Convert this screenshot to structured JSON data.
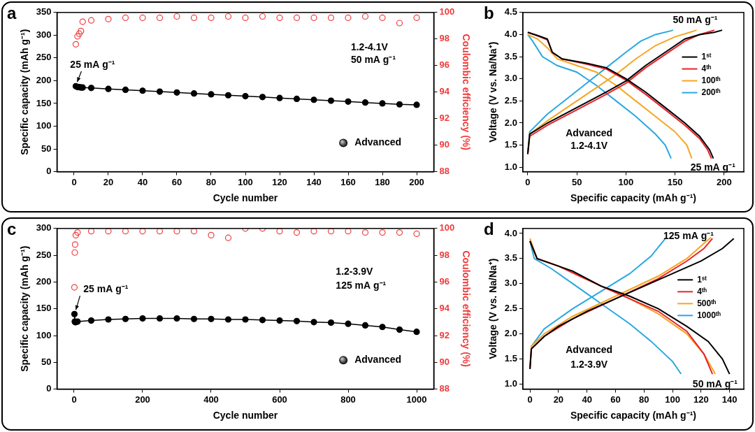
{
  "chart_data": [
    {
      "panel": "a",
      "type": "scatter",
      "x_label": "Cycle number",
      "y_label": "Specific capacity (mAh g⁻¹)",
      "y2_label": "Coulombic efficiency (%)",
      "xlim": [
        -10,
        210
      ],
      "xticks": [
        0,
        20,
        40,
        60,
        80,
        100,
        120,
        140,
        160,
        180,
        200
      ],
      "ylim": [
        0,
        350
      ],
      "yticks": [
        0,
        50,
        100,
        150,
        200,
        250,
        300,
        350
      ],
      "y2lim": [
        88,
        100
      ],
      "y2ticks": [
        88,
        90,
        92,
        94,
        96,
        98,
        100
      ],
      "grid": false,
      "legend": "lower right",
      "annotations": [
        "25 mA g⁻¹",
        "1.2-4.1V",
        "50 mA g⁻¹"
      ],
      "series": [
        {
          "name": "Advanced",
          "color": "#000000",
          "marker": "circle",
          "line_style": "solid",
          "x": [
            1,
            2,
            3,
            4,
            5,
            10,
            20,
            30,
            40,
            50,
            60,
            70,
            80,
            90,
            100,
            110,
            120,
            130,
            140,
            150,
            160,
            170,
            180,
            190,
            200
          ],
          "values": [
            188,
            186,
            186,
            185,
            185,
            184,
            182,
            180,
            178,
            176,
            174,
            172,
            170,
            168,
            166,
            164,
            162,
            160,
            158,
            156,
            154,
            152,
            150,
            148,
            147
          ]
        },
        {
          "color": "#f03c3c",
          "marker": "open_circle",
          "axis": "y2",
          "x": [
            1,
            2,
            3,
            4,
            5,
            10,
            20,
            30,
            40,
            50,
            60,
            70,
            80,
            90,
            100,
            110,
            120,
            130,
            140,
            150,
            160,
            170,
            180,
            190,
            200
          ],
          "values": [
            97.6,
            98.2,
            98.4,
            98.6,
            99.3,
            99.4,
            99.5,
            99.6,
            99.6,
            99.6,
            99.7,
            99.6,
            99.6,
            99.7,
            99.6,
            99.7,
            99.6,
            99.6,
            99.6,
            99.6,
            99.6,
            99.7,
            99.6,
            99.2,
            99.6
          ]
        }
      ]
    },
    {
      "panel": "b",
      "type": "line",
      "x_label": "Specific capacity (mAh g⁻¹)",
      "y_label": "Voltage (V vs. Na/Na⁺)",
      "xlim": [
        -5,
        220
      ],
      "xticks": [
        0,
        50,
        100,
        150,
        200
      ],
      "ylim": [
        0.9,
        4.5
      ],
      "yticks": [
        {
          "value": 1,
          "label": "1.0"
        },
        {
          "value": 1.5,
          "label": "1.5"
        },
        {
          "value": 2,
          "label": "2.0"
        },
        {
          "value": 2.5,
          "label": "2.5"
        },
        {
          "value": 3,
          "label": "3.0"
        },
        {
          "value": 3.5,
          "label": "3.5"
        },
        {
          "value": 4,
          "label": "4.0"
        },
        {
          "value": 4.5,
          "label": "4.5"
        }
      ],
      "grid": false,
      "legend": "right",
      "annotations": [
        "50 mA g⁻¹",
        "Advanced",
        "1.2-4.1V",
        "25 mA g⁻¹"
      ],
      "series": [
        {
          "name": "1ˢᵗ",
          "color": "#000000",
          "line_style": "solid",
          "segments": [
            {
              "x": [
                0,
                2,
                20,
                50,
                80,
                100,
                120,
                140,
                160,
                175,
                190,
                198
              ],
              "values": [
                1.3,
                1.75,
                2.0,
                2.35,
                2.7,
                2.95,
                3.3,
                3.6,
                3.9,
                4.0,
                4.05,
                4.1
              ]
            },
            {
              "x": [
                0,
                10,
                20,
                25,
                35,
                60,
                80,
                100,
                120,
                140,
                160,
                175,
                185,
                189
              ],
              "values": [
                4.05,
                3.98,
                3.9,
                3.6,
                3.45,
                3.35,
                3.25,
                3.0,
                2.7,
                2.35,
                2.0,
                1.7,
                1.4,
                1.2
              ]
            }
          ]
        },
        {
          "name": "4ᵗʰ",
          "color": "#e8232a",
          "line_style": "solid",
          "segments": [
            {
              "x": [
                0,
                2,
                20,
                50,
                80,
                100,
                120,
                140,
                160,
                175,
                190
              ],
              "values": [
                1.3,
                1.7,
                1.95,
                2.3,
                2.65,
                2.9,
                3.25,
                3.55,
                3.85,
                4.0,
                4.1
              ]
            },
            {
              "x": [
                0,
                10,
                20,
                25,
                35,
                60,
                80,
                100,
                120,
                140,
                160,
                175,
                183,
                187
              ],
              "values": [
                4.05,
                3.97,
                3.88,
                3.6,
                3.45,
                3.33,
                3.22,
                2.97,
                2.65,
                2.3,
                1.95,
                1.65,
                1.4,
                1.2
              ]
            }
          ]
        },
        {
          "name": "100ᵗʰ",
          "color": "#f5a623",
          "line_style": "solid",
          "segments": [
            {
              "x": [
                0,
                2,
                20,
                50,
                70,
                90,
                110,
                130,
                150,
                165,
                172
              ],
              "values": [
                1.3,
                1.75,
                2.05,
                2.5,
                2.8,
                3.1,
                3.45,
                3.75,
                3.95,
                4.05,
                4.1
              ]
            },
            {
              "x": [
                0,
                10,
                20,
                30,
                50,
                70,
                90,
                110,
                130,
                150,
                162,
                167
              ],
              "values": [
                4.0,
                3.9,
                3.7,
                3.45,
                3.3,
                3.15,
                2.85,
                2.5,
                2.15,
                1.8,
                1.5,
                1.2
              ]
            }
          ]
        },
        {
          "name": "200ᵗʰ",
          "color": "#29a8e0",
          "line_style": "solid",
          "segments": [
            {
              "x": [
                0,
                2,
                20,
                40,
                60,
                80,
                100,
                115,
                130,
                145,
                148
              ],
              "values": [
                1.3,
                1.8,
                2.2,
                2.55,
                2.9,
                3.25,
                3.6,
                3.85,
                4.0,
                4.08,
                4.1
              ]
            },
            {
              "x": [
                0,
                5,
                15,
                30,
                50,
                70,
                90,
                110,
                130,
                140,
                146
              ],
              "values": [
                4.0,
                3.85,
                3.5,
                3.3,
                3.15,
                2.85,
                2.5,
                2.15,
                1.75,
                1.5,
                1.2
              ]
            }
          ]
        }
      ]
    },
    {
      "panel": "c",
      "type": "scatter",
      "x_label": "Cycle number",
      "y_label": "Specific capacity (mAh g⁻¹)",
      "y2_label": "Coulombic efficiency (%)",
      "xlim": [
        -50,
        1050
      ],
      "xticks": [
        0,
        200,
        400,
        600,
        800,
        1000
      ],
      "ylim": [
        0,
        300
      ],
      "yticks": [
        0,
        50,
        100,
        150,
        200,
        250,
        300
      ],
      "y2lim": [
        88,
        100
      ],
      "y2ticks": [
        88,
        90,
        92,
        94,
        96,
        98,
        100
      ],
      "grid": false,
      "legend": "lower right",
      "annotations": [
        "25 mA g⁻¹",
        "1.2-3.9V",
        "125 mA g⁻¹"
      ],
      "series": [
        {
          "name": "Advanced",
          "color": "#000000",
          "marker": "circle",
          "line_style": "solid",
          "x": [
            1,
            2,
            3,
            5,
            10,
            50,
            100,
            150,
            200,
            250,
            300,
            350,
            400,
            450,
            500,
            550,
            600,
            650,
            700,
            750,
            800,
            850,
            900,
            950,
            1000
          ],
          "values": [
            140,
            126,
            125,
            125,
            126,
            128,
            130,
            131,
            132,
            132,
            132,
            131,
            131,
            130,
            130,
            129,
            128,
            127,
            125,
            124,
            122,
            119,
            116,
            111,
            107
          ]
        },
        {
          "color": "#f03c3c",
          "marker": "open_circle",
          "axis": "y2",
          "x": [
            1,
            2,
            3,
            5,
            10,
            50,
            100,
            150,
            200,
            250,
            300,
            350,
            400,
            450,
            500,
            550,
            600,
            650,
            700,
            750,
            800,
            850,
            900,
            950,
            1000
          ],
          "values": [
            95.6,
            98.2,
            98.8,
            99.5,
            99.7,
            99.8,
            99.8,
            99.8,
            99.8,
            99.8,
            99.8,
            99.8,
            99.5,
            99.3,
            100.0,
            100.0,
            99.8,
            99.7,
            99.8,
            99.8,
            99.8,
            99.7,
            99.7,
            99.7,
            99.6
          ]
        }
      ]
    },
    {
      "panel": "d",
      "type": "line",
      "x_label": "Specific capacity (mAh g⁻¹)",
      "y_label": "Voltage (V vs. Na/Na⁺)",
      "xlim": [
        -5,
        150
      ],
      "xticks": [
        0,
        20,
        40,
        60,
        80,
        100,
        120,
        140
      ],
      "ylim": [
        0.9,
        4.1
      ],
      "yticks": [
        {
          "value": 1,
          "label": "1.0"
        },
        {
          "value": 1.5,
          "label": "1.5"
        },
        {
          "value": 2,
          "label": "2.0"
        },
        {
          "value": 2.5,
          "label": "2.5"
        },
        {
          "value": 3,
          "label": "3.0"
        },
        {
          "value": 3.5,
          "label": "3.5"
        },
        {
          "value": 4,
          "label": "4.0"
        }
      ],
      "grid": false,
      "legend": "right",
      "annotations": [
        "125 mA g⁻¹",
        "Advanced",
        "1.2-3.9V",
        "50 mA g⁻¹"
      ],
      "series": [
        {
          "name": "1ˢᵗ",
          "color": "#000000",
          "line_style": "solid",
          "segments": [
            {
              "x": [
                0,
                1,
                10,
                20,
                40,
                60,
                80,
                100,
                120,
                135,
                143
              ],
              "values": [
                1.3,
                1.7,
                1.95,
                2.15,
                2.45,
                2.7,
                2.95,
                3.2,
                3.45,
                3.7,
                3.9
              ]
            },
            {
              "x": [
                0,
                5,
                15,
                30,
                40,
                50,
                70,
                90,
                110,
                125,
                135,
                140
              ],
              "values": [
                3.85,
                3.5,
                3.4,
                3.25,
                3.1,
                2.95,
                2.75,
                2.5,
                2.15,
                1.85,
                1.5,
                1.2
              ]
            }
          ]
        },
        {
          "name": "4ᵗʰ",
          "color": "#e8232a",
          "line_style": "solid",
          "segments": [
            {
              "x": [
                0,
                1,
                10,
                30,
                60,
                90,
                110,
                122,
                128
              ],
              "values": [
                1.3,
                1.7,
                1.95,
                2.3,
                2.7,
                3.1,
                3.45,
                3.7,
                3.9
              ]
            },
            {
              "x": [
                0,
                5,
                20,
                35,
                50,
                70,
                90,
                110,
                122,
                128
              ],
              "values": [
                3.85,
                3.5,
                3.35,
                3.15,
                2.95,
                2.7,
                2.45,
                2.05,
                1.6,
                1.2
              ]
            }
          ]
        },
        {
          "name": "500ᵗʰ",
          "color": "#f5a623",
          "line_style": "solid",
          "segments": [
            {
              "x": [
                0,
                1,
                10,
                30,
                60,
                90,
                110,
                122,
                127
              ],
              "values": [
                1.3,
                1.75,
                2.0,
                2.35,
                2.75,
                3.15,
                3.5,
                3.8,
                3.92
              ]
            },
            {
              "x": [
                0,
                5,
                20,
                35,
                50,
                70,
                90,
                110,
                122,
                130
              ],
              "values": [
                3.9,
                3.5,
                3.35,
                3.15,
                2.95,
                2.7,
                2.4,
                2.0,
                1.6,
                1.2
              ]
            }
          ]
        },
        {
          "name": "1000ᵗʰ",
          "color": "#29a8e0",
          "line_style": "solid",
          "segments": [
            {
              "x": [
                0,
                1,
                10,
                30,
                50,
                70,
                85,
                95
              ],
              "values": [
                1.3,
                1.75,
                2.1,
                2.5,
                2.85,
                3.2,
                3.55,
                3.9
              ]
            },
            {
              "x": [
                0,
                3,
                15,
                25,
                40,
                55,
                70,
                85,
                100,
                106
              ],
              "values": [
                3.85,
                3.5,
                3.3,
                3.1,
                2.8,
                2.5,
                2.2,
                1.85,
                1.45,
                1.2
              ]
            }
          ]
        }
      ]
    }
  ]
}
